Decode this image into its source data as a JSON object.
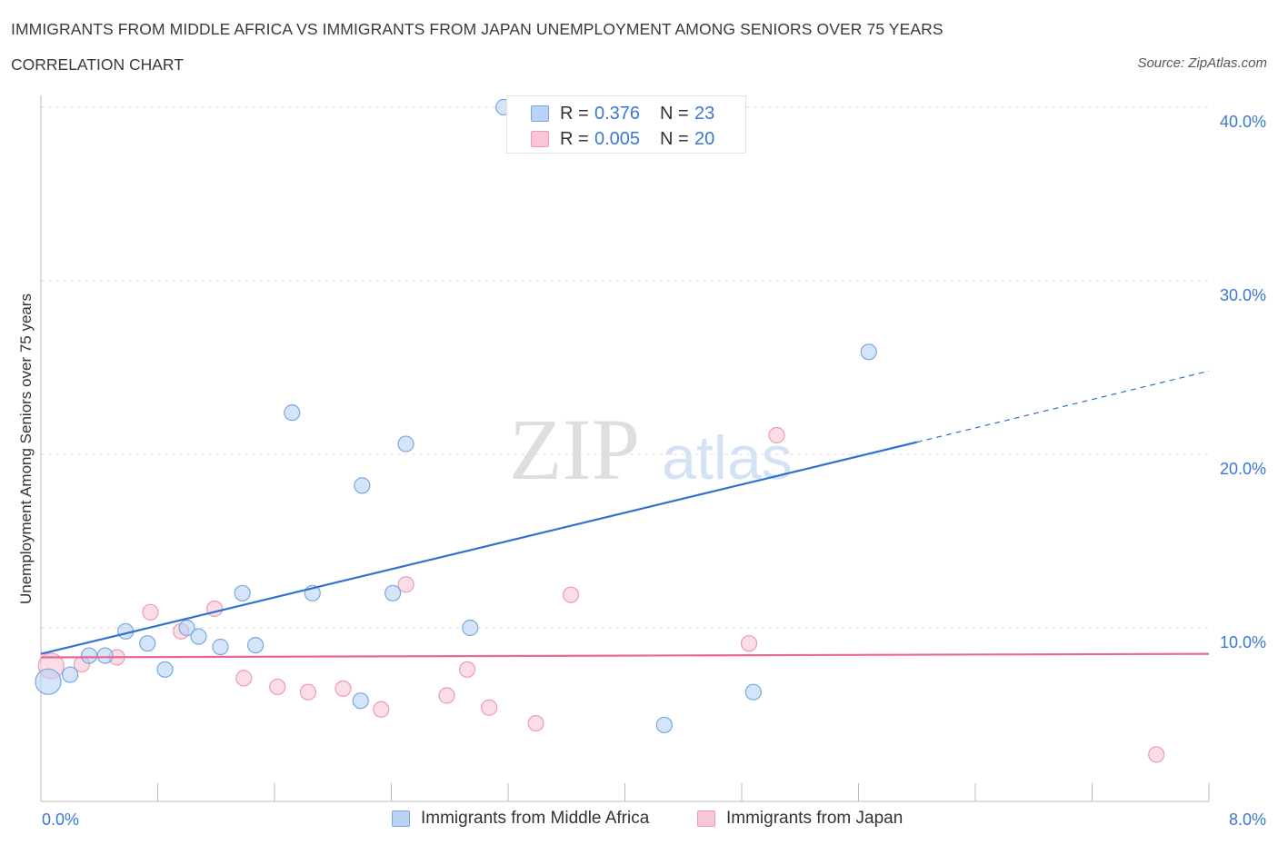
{
  "header": {
    "title": "IMMIGRANTS FROM MIDDLE AFRICA VS IMMIGRANTS FROM JAPAN UNEMPLOYMENT AMONG SENIORS OVER 75 YEARS",
    "subtitle": "CORRELATION CHART",
    "source": "Source: ZipAtlas.com"
  },
  "legend": {
    "series1": {
      "r_label": "R =",
      "r_value": "0.376",
      "n_label": "N =",
      "n_value": "23"
    },
    "series2": {
      "r_label": "R =",
      "r_value": "0.005",
      "n_label": "N =",
      "n_value": "20"
    }
  },
  "bottom_legend": {
    "series1": "Immigrants from Middle Africa",
    "series2": "Immigrants from Japan"
  },
  "watermark": {
    "zip": "ZIP",
    "atlas": "atlas"
  },
  "colors": {
    "blue_fill": "#b8d3f5",
    "blue_stroke": "#7aa6e0",
    "blue_line": "#2f72d0",
    "pink_fill": "#f8c6d6",
    "pink_stroke": "#ee9ab5",
    "pink_line": "#e8679a",
    "tick_text": "#3a78d4",
    "grid": "#dddddd"
  },
  "chart_data": {
    "type": "scatter",
    "title": "IMMIGRANTS FROM MIDDLE AFRICA VS IMMIGRANTS FROM JAPAN UNEMPLOYMENT AMONG SENIORS OVER 75 YEARS",
    "xlabel": "",
    "ylabel": "Unemployment Among Seniors over 75 years",
    "xlim": [
      0,
      8
    ],
    "ylim": [
      0,
      40
    ],
    "x_tick_labels": [
      "0.0%",
      "8.0%"
    ],
    "y_ticks": [
      10,
      20,
      30,
      40
    ],
    "y_tick_labels": [
      "10.0%",
      "20.0%",
      "30.0%",
      "40.0%"
    ],
    "series": [
      {
        "name": "Immigrants from Middle Africa",
        "color": "blue",
        "trend": {
          "x": [
            0.0,
            6.0
          ],
          "y": [
            8.5,
            20.7
          ],
          "dashed_to_x": 8.0,
          "dashed_to_y": 24.8
        },
        "points": [
          {
            "x": 0.05,
            "y": 6.9,
            "big": true
          },
          {
            "x": 0.2,
            "y": 7.3
          },
          {
            "x": 0.33,
            "y": 8.4
          },
          {
            "x": 0.44,
            "y": 8.4
          },
          {
            "x": 0.58,
            "y": 9.8
          },
          {
            "x": 0.73,
            "y": 9.1
          },
          {
            "x": 0.85,
            "y": 7.6
          },
          {
            "x": 1.0,
            "y": 10.0
          },
          {
            "x": 1.08,
            "y": 9.5
          },
          {
            "x": 1.23,
            "y": 8.9
          },
          {
            "x": 1.38,
            "y": 12.0
          },
          {
            "x": 1.47,
            "y": 9.0
          },
          {
            "x": 1.72,
            "y": 22.4
          },
          {
            "x": 1.86,
            "y": 12.0
          },
          {
            "x": 2.2,
            "y": 18.2
          },
          {
            "x": 2.19,
            "y": 5.8
          },
          {
            "x": 2.41,
            "y": 12.0
          },
          {
            "x": 2.5,
            "y": 20.6
          },
          {
            "x": 2.94,
            "y": 10.0
          },
          {
            "x": 3.17,
            "y": 40.0
          },
          {
            "x": 4.27,
            "y": 4.4
          },
          {
            "x": 4.88,
            "y": 6.3
          },
          {
            "x": 5.67,
            "y": 25.9
          }
        ]
      },
      {
        "name": "Immigrants from Japan",
        "color": "pink",
        "trend": {
          "x": [
            0.0,
            8.0
          ],
          "y": [
            8.3,
            8.5
          ]
        },
        "points": [
          {
            "x": 0.07,
            "y": 7.8,
            "big": true
          },
          {
            "x": 0.28,
            "y": 7.9
          },
          {
            "x": 0.52,
            "y": 8.3
          },
          {
            "x": 0.75,
            "y": 10.9
          },
          {
            "x": 0.96,
            "y": 9.8
          },
          {
            "x": 1.19,
            "y": 11.1
          },
          {
            "x": 1.39,
            "y": 7.1
          },
          {
            "x": 1.62,
            "y": 6.6
          },
          {
            "x": 1.83,
            "y": 6.3
          },
          {
            "x": 2.07,
            "y": 6.5
          },
          {
            "x": 2.33,
            "y": 5.3
          },
          {
            "x": 2.5,
            "y": 12.5
          },
          {
            "x": 2.78,
            "y": 6.1
          },
          {
            "x": 2.92,
            "y": 7.6
          },
          {
            "x": 3.07,
            "y": 5.4
          },
          {
            "x": 3.39,
            "y": 4.5
          },
          {
            "x": 3.63,
            "y": 11.9
          },
          {
            "x": 4.85,
            "y": 9.1
          },
          {
            "x": 5.04,
            "y": 21.1
          },
          {
            "x": 7.64,
            "y": 2.7
          }
        ]
      }
    ]
  }
}
